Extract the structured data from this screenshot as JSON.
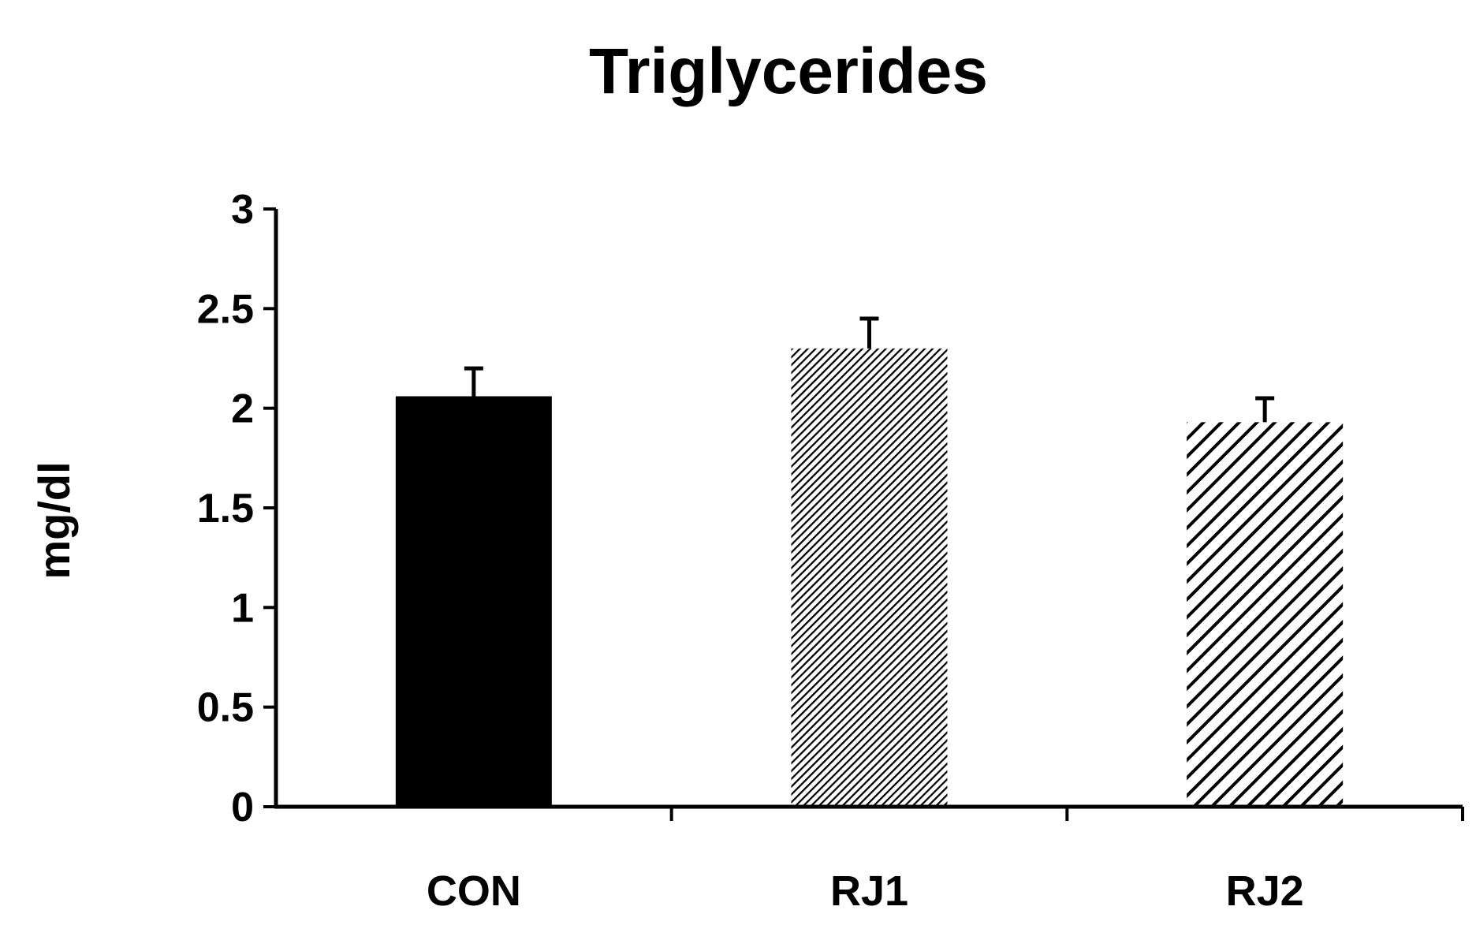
{
  "chart_data": {
    "type": "bar",
    "title": "Triglycerides",
    "xlabel": "",
    "ylabel": "mg/dl",
    "categories": [
      "CON",
      "RJ1",
      "RJ2"
    ],
    "series": [
      {
        "values": [
          2.06,
          2.3,
          1.93
        ],
        "errors": [
          0.14,
          0.15,
          0.12
        ],
        "fills": [
          "solid",
          "fine-hatch",
          "diagonal-stripes"
        ]
      }
    ],
    "ylim": [
      0,
      3
    ],
    "yticks": [
      "0",
      "0.5",
      "1",
      "1.5",
      "2",
      "2.5",
      "3"
    ],
    "grid": false,
    "legend": "none",
    "colors": {
      "bar": "#000000",
      "axis": "#000000"
    }
  }
}
